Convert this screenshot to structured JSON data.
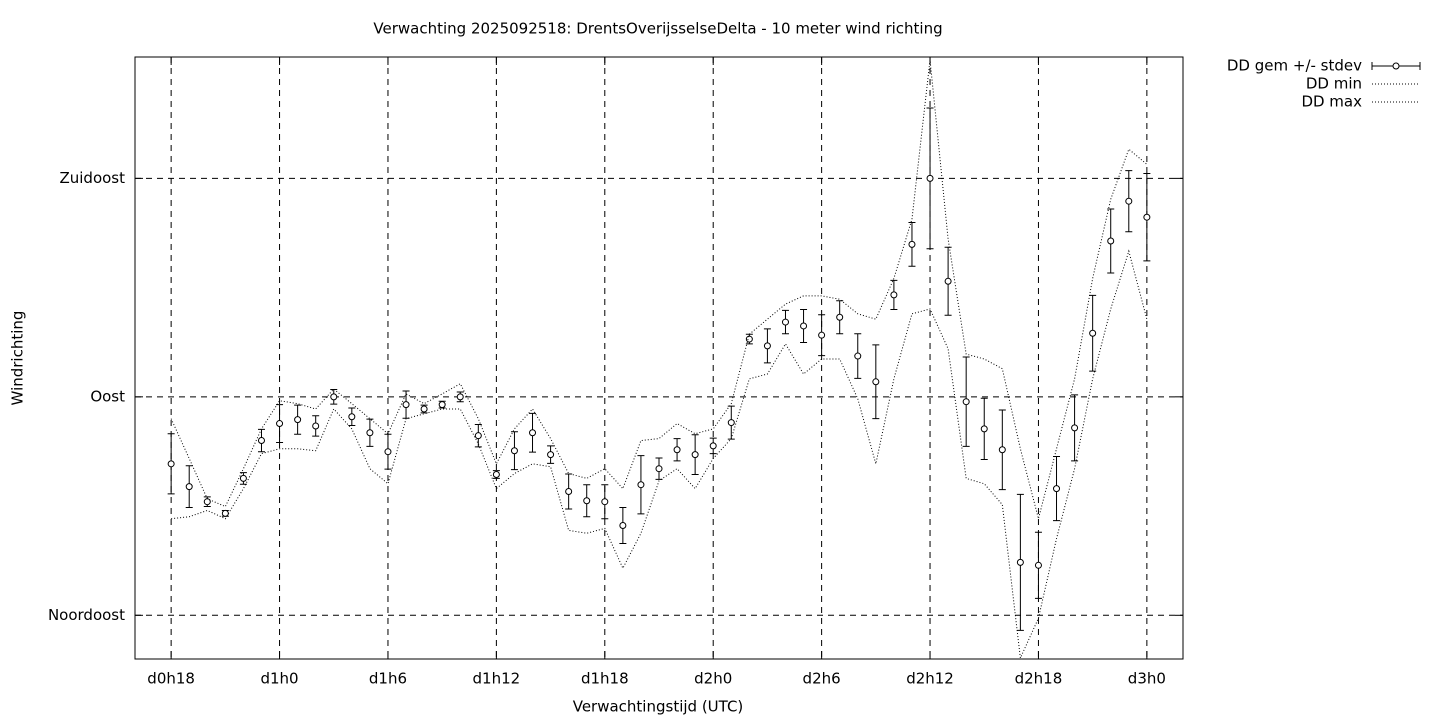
{
  "chart_data": {
    "type": "errorbar-line",
    "title": "Verwachting 2025092518: DrentsOverijsselseDelta - 10 meter wind richting",
    "xlabel": "Verwachtingstijd (UTC)",
    "ylabel": "Windrichting",
    "xlim": [
      16,
      74
    ],
    "xticks": [
      {
        "value": 18,
        "label": "d0h18"
      },
      {
        "value": 24,
        "label": "d1h0"
      },
      {
        "value": 30,
        "label": "d1h6"
      },
      {
        "value": 36,
        "label": "d1h12"
      },
      {
        "value": 42,
        "label": "d1h18"
      },
      {
        "value": 48,
        "label": "d2h0"
      },
      {
        "value": 54,
        "label": "d2h6"
      },
      {
        "value": 60,
        "label": "d2h12"
      },
      {
        "value": 66,
        "label": "d2h18"
      },
      {
        "value": 72,
        "label": "d3h0"
      }
    ],
    "ylim": [
      36,
      160
    ],
    "yticks": [
      {
        "value": 45,
        "label": "Noordoost"
      },
      {
        "value": 90,
        "label": "Oost"
      },
      {
        "value": 135,
        "label": "Zuidoost"
      }
    ],
    "grid": true,
    "legend": "outside-top-right",
    "x": [
      18,
      19,
      20,
      21,
      22,
      23,
      24,
      25,
      26,
      27,
      28,
      29,
      30,
      31,
      32,
      33,
      34,
      35,
      36,
      37,
      38,
      39,
      40,
      41,
      42,
      43,
      44,
      45,
      46,
      47,
      48,
      49,
      50,
      51,
      52,
      53,
      54,
      55,
      56,
      57,
      58,
      59,
      60,
      61,
      62,
      63,
      64,
      65,
      66,
      67,
      68,
      69,
      70,
      71,
      72
    ],
    "series": [
      {
        "name": "DD gem +/- stdev",
        "color": "#000000",
        "style": "errorbar",
        "values": [
          76.2,
          71.5,
          68.4,
          66.0,
          73.2,
          81.0,
          84.5,
          85.3,
          84.0,
          90.0,
          85.9,
          82.6,
          78.7,
          88.4,
          87.5,
          88.4,
          90.0,
          82.0,
          74.0,
          78.9,
          82.6,
          78.1,
          70.5,
          68.6,
          68.4,
          63.5,
          71.9,
          75.2,
          79.1,
          78.1,
          79.9,
          84.7,
          101.9,
          100.5,
          105.4,
          104.6,
          102.7,
          106.4,
          98.4,
          93.1,
          111.0,
          121.4,
          135.0,
          113.8,
          89.0,
          83.4,
          79.1,
          55.9,
          55.3,
          71.1,
          83.6,
          103.1,
          122.1,
          130.3,
          127.0
        ],
        "errors": [
          6.2,
          4.3,
          1.0,
          0.6,
          1.2,
          2.3,
          3.9,
          3.0,
          2.1,
          1.5,
          1.8,
          2.8,
          3.6,
          2.8,
          0.8,
          0.7,
          1.0,
          2.3,
          0.8,
          3.9,
          4.0,
          1.8,
          3.6,
          3.3,
          3.5,
          3.7,
          6.0,
          2.2,
          2.3,
          4.1,
          1.6,
          3.4,
          1.0,
          3.5,
          2.4,
          3.4,
          4.2,
          3.4,
          4.6,
          7.6,
          3.0,
          4.5,
          14.5,
          7.0,
          9.2,
          6.3,
          8.2,
          14.0,
          6.8,
          6.6,
          6.8,
          7.8,
          6.6,
          6.3,
          9.0
        ]
      },
      {
        "name": "DD min",
        "color": "#000000",
        "style": "dotted",
        "values": [
          64.9,
          65.3,
          66.6,
          64.9,
          71.1,
          78.3,
          79.3,
          79.3,
          78.9,
          87.5,
          83.4,
          75.2,
          72.1,
          85.5,
          86.5,
          87.5,
          87.5,
          80.3,
          71.1,
          74.2,
          76.2,
          75.6,
          62.5,
          61.9,
          62.9,
          54.7,
          61.9,
          72.7,
          75.2,
          71.1,
          77.3,
          81.4,
          93.7,
          94.7,
          100.9,
          94.7,
          97.8,
          97.8,
          89.6,
          76.2,
          93.7,
          107.1,
          108.1,
          99.9,
          73.2,
          72.1,
          67.8,
          36.2,
          44.4,
          60.8,
          75.2,
          93.7,
          108.1,
          120.0,
          106.0
        ]
      },
      {
        "name": "DD max",
        "color": "#000000",
        "style": "dotted",
        "values": [
          85.5,
          77.3,
          69.0,
          67.4,
          75.2,
          83.4,
          89.2,
          88.6,
          87.5,
          91.6,
          88.6,
          85.5,
          82.4,
          90.6,
          88.6,
          90.6,
          92.7,
          85.5,
          76.2,
          83.4,
          87.5,
          81.4,
          74.2,
          73.2,
          75.2,
          71.1,
          81.0,
          81.4,
          84.5,
          82.4,
          83.4,
          88.6,
          102.9,
          106.0,
          109.1,
          110.8,
          110.8,
          110.1,
          107.1,
          106.0,
          114.4,
          126.6,
          159.4,
          122.5,
          98.8,
          97.8,
          95.8,
          79.3,
          64.9,
          79.3,
          93.7,
          114.4,
          130.7,
          141.0,
          137.9
        ]
      }
    ]
  }
}
